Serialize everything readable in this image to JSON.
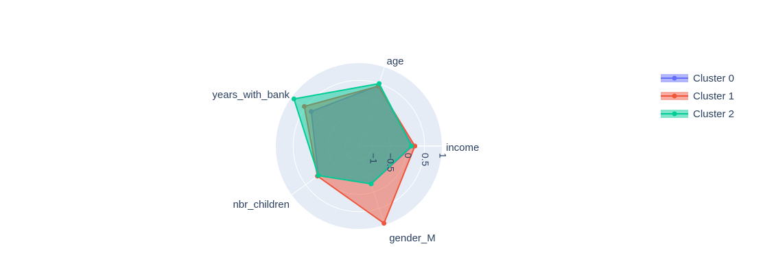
{
  "chart_data": {
    "type": "radar",
    "title": "",
    "theta": [
      "income",
      "age",
      "years_with_bank",
      "nbr_children",
      "gender_M"
    ],
    "radial_range": [
      -1.4,
      1.0
    ],
    "radial_ticks": [
      -1,
      -0.5,
      0,
      0.5,
      1
    ],
    "radial_tick_labels": [
      "−1",
      "−0.5",
      "0",
      "0.5",
      "1"
    ],
    "series": [
      {
        "name": "Cluster 0",
        "color": "#636efa",
        "values": [
          0.15,
          0.44,
          0.3,
          0.05,
          -0.25
        ]
      },
      {
        "name": "Cluster 1",
        "color": "#ef553b",
        "values": [
          0.22,
          0.42,
          0.55,
          0.08,
          0.95
        ]
      },
      {
        "name": "Cluster 2",
        "color": "#00cc96",
        "values": [
          0.12,
          0.5,
          0.92,
          0.05,
          -0.25
        ]
      }
    ],
    "polar_background": "#e5ecf6",
    "grid": true,
    "legend_position": "top-right"
  }
}
